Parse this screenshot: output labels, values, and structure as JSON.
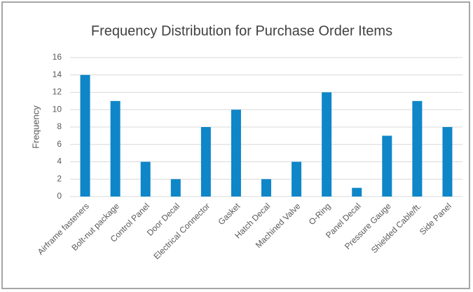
{
  "chart_data": {
    "type": "bar",
    "title": "Frequency Distribution for Purchase Order Items",
    "y_label": "Frequency",
    "categories": [
      "Airframe fasteners",
      "Bolt-nut package",
      "Control Panel",
      "Door Decal",
      "Electrical Connector",
      "Gasket",
      "Hatch Decal",
      "Machined Valve",
      "O-Ring",
      "Panel Decal",
      "Pressure Gauge",
      "Shielded Cable/ft.",
      "Side Panel"
    ],
    "values": [
      14,
      11,
      4,
      2,
      8,
      10,
      2,
      4,
      12,
      1,
      7,
      11,
      8
    ],
    "color": "#0e86c8",
    "ylim": [
      0,
      16
    ],
    "yticks": [
      0,
      2,
      4,
      6,
      8,
      10,
      12,
      14,
      16
    ],
    "grid": true
  }
}
